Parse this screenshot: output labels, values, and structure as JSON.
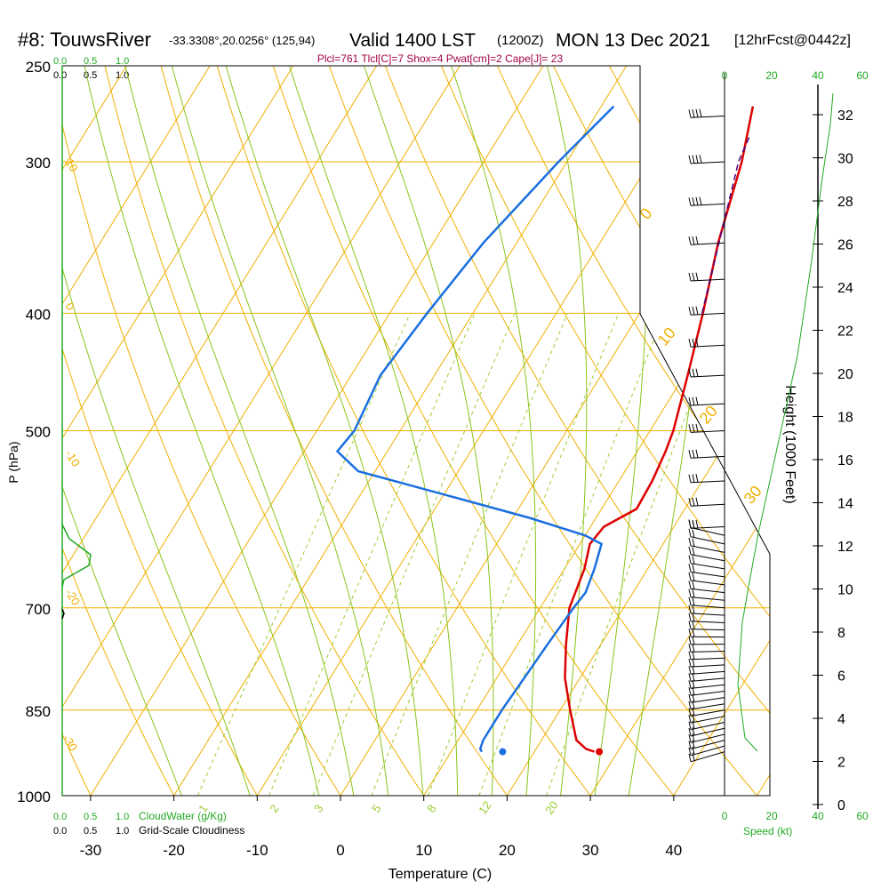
{
  "header": {
    "station": "#8: TouwsRiver",
    "coords": "-33.3308°,20.0256° (125,94)",
    "valid": "Valid 1400 LST",
    "zulu": "(1200Z)",
    "date": "MON 13 Dec 2021",
    "forecast": "[12hrFcst@0442z]",
    "params": "Plcl=761 Tlcl[C]=7 Shox=4 Pwat[cm]=2 Cape[J]= 23"
  },
  "colors": {
    "temperature": "#dd0000",
    "dewpoint": "#1a6fe0",
    "isotherm": "#f0b000",
    "dry_adiabat": "#f0b000",
    "moist_adiabat": "#8cc41a",
    "mixing_ratio": "#9acd32",
    "green_text": "#22aa22",
    "params_text": "#a0004a",
    "parcel": "#4b0082"
  },
  "chart_data": {
    "type": "line",
    "title": "#8: TouwsRiver",
    "xlabel": "Temperature (C)",
    "ylabel": "P (hPa)",
    "y2label": "Height (1000 Feet)",
    "xlim": [
      -35,
      46
    ],
    "ylim": [
      1000,
      250
    ],
    "pressure_ticks": [
      "250",
      "300",
      "400",
      "500",
      "700",
      "850",
      "1000"
    ],
    "temperature_ticks": [
      "-30",
      "-20",
      "-10",
      "0",
      "10",
      "20",
      "30",
      "40"
    ],
    "height_ticks": [
      "0",
      "2",
      "4",
      "6",
      "8",
      "10",
      "12",
      "14",
      "16",
      "18",
      "20",
      "22",
      "24",
      "26",
      "28",
      "30",
      "32"
    ],
    "isotherm_labels": [
      "10",
      "0",
      "-10",
      "-20",
      "-30"
    ],
    "dry_adiabat_labels": [
      "0",
      "10",
      "20",
      "30"
    ],
    "mixing_ratio_labels": [
      "1",
      "2",
      "3",
      "5",
      "8",
      "12",
      "20"
    ],
    "series": [
      {
        "name": "Temperature",
        "p": [
          920,
          915,
          900,
          850,
          800,
          750,
          700,
          650,
          620,
          600,
          580,
          550,
          520,
          500,
          450,
          400,
          350,
          300,
          270
        ],
        "t": [
          27.2,
          26.0,
          24.2,
          21.2,
          18.2,
          15.8,
          13.5,
          12.4,
          11.2,
          11.6,
          14.2,
          14.0,
          13.4,
          12.8,
          10.4,
          7.6,
          4.2,
          1.0,
          -1.8
        ],
        "surface": 27.8
      },
      {
        "name": "Dewpoint",
        "p": [
          920,
          915,
          900,
          850,
          800,
          750,
          700,
          680,
          650,
          620,
          610,
          590,
          550,
          540,
          520,
          500,
          450,
          400,
          350,
          300,
          270
        ],
        "t": [
          13.7,
          13.3,
          13.0,
          13.0,
          13.3,
          13.6,
          14.0,
          14.3,
          13.6,
          12.6,
          10.0,
          2.0,
          -17.0,
          -22.0,
          -26.0,
          -25.5,
          -26.5,
          -25.5,
          -24.0,
          -21.0,
          -18.5
        ],
        "surface": 16.2
      },
      {
        "name": "Parcel",
        "p": [
          400,
          300,
          285
        ],
        "t": [
          7.5,
          0.6,
          0.0
        ]
      }
    ],
    "cloud_water_axis": [
      "0.0",
      "0.5",
      "1.0"
    ],
    "cloudiness_axis": [
      "0.0",
      "0.5",
      "1.0"
    ],
    "cloud_water_label": "CloudWater (g/Kg)",
    "cloudiness_label": "Grid-Scale Cloudiness",
    "speed_axis": [
      "0",
      "20",
      "40",
      "60"
    ],
    "speed_label": "Speed (kt)"
  }
}
